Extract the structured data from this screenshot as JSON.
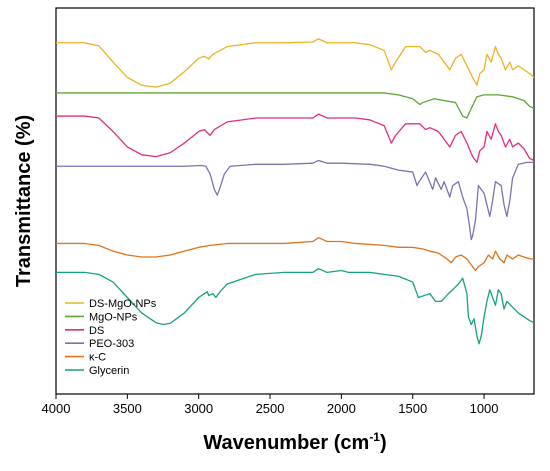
{
  "chart_data": {
    "type": "line",
    "xlabel": "Wavenumber (cm",
    "xlabel_sup": "-1",
    "xlabel_close": ")",
    "ylabel": "Transmittance (%)",
    "xlim": [
      4000,
      650
    ],
    "x_reversed": true,
    "x_ticks": [
      4000,
      3500,
      3000,
      2500,
      2000,
      1500,
      1000
    ],
    "x_tick_labels": [
      "4000",
      "3500",
      "3000",
      "2500",
      "2000",
      "1500",
      "1000"
    ],
    "ylim": [
      0,
      100
    ],
    "y_ticks_shown": false,
    "grid": false,
    "legend_position": "bottom-left",
    "series": [
      {
        "name": "DS-MgO-NPs",
        "color": "#EBB424",
        "baseline": 91,
        "points": [
          [
            4000,
            91
          ],
          [
            3800,
            91
          ],
          [
            3700,
            90.2
          ],
          [
            3600,
            86
          ],
          [
            3500,
            82
          ],
          [
            3400,
            80
          ],
          [
            3300,
            79.5
          ],
          [
            3200,
            80.5
          ],
          [
            3100,
            83.5
          ],
          [
            3000,
            87
          ],
          [
            2960,
            87.5
          ],
          [
            2930,
            86.8
          ],
          [
            2900,
            88
          ],
          [
            2800,
            90
          ],
          [
            2600,
            91
          ],
          [
            2400,
            91
          ],
          [
            2200,
            91.2
          ],
          [
            2160,
            92
          ],
          [
            2100,
            91
          ],
          [
            2000,
            91
          ],
          [
            1900,
            91
          ],
          [
            1800,
            90.5
          ],
          [
            1700,
            89
          ],
          [
            1650,
            84
          ],
          [
            1620,
            86
          ],
          [
            1550,
            90
          ],
          [
            1450,
            90
          ],
          [
            1410,
            88.5
          ],
          [
            1380,
            89
          ],
          [
            1320,
            88
          ],
          [
            1240,
            84
          ],
          [
            1200,
            87
          ],
          [
            1160,
            88
          ],
          [
            1120,
            85
          ],
          [
            1080,
            82
          ],
          [
            1050,
            80
          ],
          [
            1030,
            83
          ],
          [
            1000,
            84
          ],
          [
            980,
            88
          ],
          [
            950,
            86
          ],
          [
            920,
            90
          ],
          [
            900,
            88
          ],
          [
            880,
            87
          ],
          [
            850,
            84
          ],
          [
            820,
            86
          ],
          [
            800,
            84
          ],
          [
            760,
            85
          ],
          [
            720,
            84
          ],
          [
            680,
            83
          ],
          [
            650,
            82
          ]
        ]
      },
      {
        "name": "MgO-NPs",
        "color": "#5CA632",
        "baseline": 78,
        "points": [
          [
            4000,
            78
          ],
          [
            3600,
            78
          ],
          [
            3500,
            78
          ],
          [
            3400,
            78
          ],
          [
            3000,
            78
          ],
          [
            2500,
            78
          ],
          [
            2000,
            78
          ],
          [
            1700,
            78
          ],
          [
            1600,
            77.5
          ],
          [
            1500,
            76.5
          ],
          [
            1450,
            75
          ],
          [
            1430,
            75.5
          ],
          [
            1350,
            76.5
          ],
          [
            1200,
            75.5
          ],
          [
            1150,
            72
          ],
          [
            1120,
            71.5
          ],
          [
            1090,
            74
          ],
          [
            1050,
            77
          ],
          [
            1000,
            77.5
          ],
          [
            900,
            77.5
          ],
          [
            800,
            77
          ],
          [
            720,
            76
          ],
          [
            680,
            74.5
          ],
          [
            650,
            74
          ]
        ]
      },
      {
        "name": "DS",
        "color": "#E12C84",
        "baseline": 72,
        "points": [
          [
            4000,
            72
          ],
          [
            3800,
            72
          ],
          [
            3700,
            71.5
          ],
          [
            3600,
            68
          ],
          [
            3500,
            64
          ],
          [
            3400,
            62
          ],
          [
            3300,
            61.5
          ],
          [
            3200,
            62.5
          ],
          [
            3100,
            65
          ],
          [
            3000,
            68
          ],
          [
            2960,
            68.5
          ],
          [
            2920,
            67
          ],
          [
            2890,
            68.5
          ],
          [
            2800,
            70.5
          ],
          [
            2600,
            71.5
          ],
          [
            2400,
            71.5
          ],
          [
            2200,
            71.5
          ],
          [
            2160,
            72.5
          ],
          [
            2100,
            71.5
          ],
          [
            2000,
            71.5
          ],
          [
            1900,
            71.5
          ],
          [
            1800,
            71
          ],
          [
            1700,
            69.5
          ],
          [
            1650,
            65
          ],
          [
            1620,
            67
          ],
          [
            1550,
            70
          ],
          [
            1450,
            70
          ],
          [
            1410,
            68.5
          ],
          [
            1380,
            69
          ],
          [
            1320,
            68
          ],
          [
            1240,
            64
          ],
          [
            1200,
            67
          ],
          [
            1160,
            68
          ],
          [
            1120,
            65
          ],
          [
            1080,
            61.5
          ],
          [
            1050,
            60
          ],
          [
            1030,
            63
          ],
          [
            1000,
            64
          ],
          [
            980,
            68
          ],
          [
            950,
            66
          ],
          [
            920,
            70
          ],
          [
            900,
            68
          ],
          [
            880,
            67
          ],
          [
            850,
            64
          ],
          [
            820,
            66
          ],
          [
            800,
            64
          ],
          [
            760,
            65
          ],
          [
            720,
            63.5
          ],
          [
            680,
            61
          ],
          [
            650,
            60.5
          ]
        ]
      },
      {
        "name": "PEO-303",
        "color": "#7D71B2",
        "baseline": 59,
        "points": [
          [
            4000,
            59
          ],
          [
            3700,
            59
          ],
          [
            3500,
            59
          ],
          [
            3300,
            59
          ],
          [
            3100,
            59
          ],
          [
            2980,
            59.2
          ],
          [
            2950,
            59
          ],
          [
            2920,
            57
          ],
          [
            2890,
            53
          ],
          [
            2870,
            51.5
          ],
          [
            2850,
            53.5
          ],
          [
            2820,
            57
          ],
          [
            2780,
            59
          ],
          [
            2600,
            59.5
          ],
          [
            2400,
            59.5
          ],
          [
            2200,
            59.8
          ],
          [
            2160,
            60.5
          ],
          [
            2100,
            59.8
          ],
          [
            2000,
            59.8
          ],
          [
            1800,
            59.5
          ],
          [
            1700,
            59
          ],
          [
            1600,
            58
          ],
          [
            1500,
            57.5
          ],
          [
            1470,
            54
          ],
          [
            1455,
            55
          ],
          [
            1410,
            57.5
          ],
          [
            1360,
            53
          ],
          [
            1340,
            56
          ],
          [
            1300,
            53
          ],
          [
            1280,
            55
          ],
          [
            1240,
            51
          ],
          [
            1220,
            54
          ],
          [
            1180,
            55
          ],
          [
            1150,
            51
          ],
          [
            1120,
            48
          ],
          [
            1100,
            43
          ],
          [
            1090,
            40
          ],
          [
            1080,
            41
          ],
          [
            1060,
            45
          ],
          [
            1040,
            54
          ],
          [
            1000,
            52
          ],
          [
            960,
            46
          ],
          [
            945,
            49
          ],
          [
            920,
            55
          ],
          [
            880,
            54
          ],
          [
            860,
            49
          ],
          [
            840,
            46
          ],
          [
            820,
            50
          ],
          [
            800,
            56
          ],
          [
            760,
            59.5
          ],
          [
            700,
            60
          ],
          [
            650,
            60
          ]
        ]
      },
      {
        "name": "κ-C",
        "color": "#E0731D",
        "baseline": 39,
        "points": [
          [
            4000,
            39
          ],
          [
            3800,
            39
          ],
          [
            3700,
            38.5
          ],
          [
            3600,
            37
          ],
          [
            3500,
            36
          ],
          [
            3400,
            35.5
          ],
          [
            3300,
            35.5
          ],
          [
            3200,
            36
          ],
          [
            3100,
            37
          ],
          [
            3000,
            38
          ],
          [
            2920,
            38.5
          ],
          [
            2800,
            39
          ],
          [
            2600,
            39
          ],
          [
            2400,
            39
          ],
          [
            2200,
            39.5
          ],
          [
            2160,
            40.5
          ],
          [
            2100,
            39.5
          ],
          [
            2000,
            39.5
          ],
          [
            1900,
            39
          ],
          [
            1700,
            38.5
          ],
          [
            1600,
            38
          ],
          [
            1500,
            38
          ],
          [
            1420,
            37.5
          ],
          [
            1380,
            37
          ],
          [
            1320,
            36.5
          ],
          [
            1260,
            35
          ],
          [
            1230,
            34
          ],
          [
            1200,
            35.5
          ],
          [
            1160,
            36
          ],
          [
            1120,
            35
          ],
          [
            1080,
            33
          ],
          [
            1060,
            32
          ],
          [
            1040,
            33
          ],
          [
            1000,
            34
          ],
          [
            970,
            36
          ],
          [
            940,
            35
          ],
          [
            920,
            37
          ],
          [
            890,
            35
          ],
          [
            860,
            34
          ],
          [
            840,
            36
          ],
          [
            800,
            35
          ],
          [
            760,
            36
          ],
          [
            720,
            35.5
          ],
          [
            680,
            35
          ],
          [
            650,
            35
          ]
        ]
      },
      {
        "name": "Glycerin",
        "color": "#14A285",
        "baseline": 31.5,
        "points": [
          [
            4000,
            31.5
          ],
          [
            3800,
            31.5
          ],
          [
            3700,
            31
          ],
          [
            3600,
            29
          ],
          [
            3500,
            25
          ],
          [
            3400,
            21
          ],
          [
            3300,
            18.5
          ],
          [
            3250,
            18
          ],
          [
            3200,
            18.3
          ],
          [
            3100,
            21
          ],
          [
            3000,
            25
          ],
          [
            2940,
            26.5
          ],
          [
            2930,
            25.5
          ],
          [
            2900,
            26
          ],
          [
            2880,
            25
          ],
          [
            2850,
            26.5
          ],
          [
            2800,
            28.5
          ],
          [
            2600,
            31
          ],
          [
            2400,
            31.5
          ],
          [
            2200,
            31.5
          ],
          [
            2160,
            32.5
          ],
          [
            2100,
            31.5
          ],
          [
            2000,
            32
          ],
          [
            1950,
            31.5
          ],
          [
            1800,
            31.5
          ],
          [
            1700,
            31
          ],
          [
            1600,
            30.5
          ],
          [
            1500,
            29
          ],
          [
            1460,
            25
          ],
          [
            1420,
            25.5
          ],
          [
            1380,
            26
          ],
          [
            1340,
            24
          ],
          [
            1300,
            24
          ],
          [
            1250,
            26
          ],
          [
            1220,
            27
          ],
          [
            1180,
            28.5
          ],
          [
            1150,
            30
          ],
          [
            1120,
            26
          ],
          [
            1110,
            20
          ],
          [
            1090,
            18
          ],
          [
            1070,
            19.5
          ],
          [
            1050,
            15
          ],
          [
            1035,
            13
          ],
          [
            1020,
            15
          ],
          [
            1000,
            20
          ],
          [
            980,
            24
          ],
          [
            960,
            27
          ],
          [
            940,
            25
          ],
          [
            920,
            23
          ],
          [
            900,
            27
          ],
          [
            880,
            26
          ],
          [
            860,
            22
          ],
          [
            840,
            24
          ],
          [
            800,
            22.5
          ],
          [
            760,
            21
          ],
          [
            720,
            20
          ],
          [
            680,
            19
          ],
          [
            650,
            18.5
          ]
        ]
      }
    ]
  }
}
